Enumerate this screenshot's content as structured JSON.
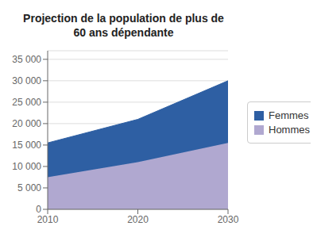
{
  "chart_data": {
    "type": "area",
    "title": "Projection de la population de plus de\n60 ans dépendante",
    "x": [
      2010,
      2020,
      2030
    ],
    "series": [
      {
        "name": "Hommes",
        "color": "#B0A8D0",
        "values": [
          7500,
          11000,
          15500
        ]
      },
      {
        "name": "Femmes",
        "color": "#2E5FA3",
        "values": [
          8000,
          10000,
          14500
        ]
      }
    ],
    "stacked": true,
    "xlim": [
      2010,
      2030
    ],
    "xticks": [
      2010,
      2020,
      2030
    ],
    "ylim": [
      0,
      37000
    ],
    "yticks": [
      0,
      {
        "value": 5000,
        "label": "5 000"
      },
      {
        "value": 10000,
        "label": "10 000"
      },
      {
        "value": 15000,
        "label": "15 000"
      },
      {
        "value": 20000,
        "label": "20 000"
      },
      {
        "value": 25000,
        "label": "25 000"
      },
      {
        "value": 30000,
        "label": "30 000"
      },
      {
        "value": 35000,
        "label": "35 000"
      }
    ],
    "grid": true,
    "legend": "right"
  }
}
